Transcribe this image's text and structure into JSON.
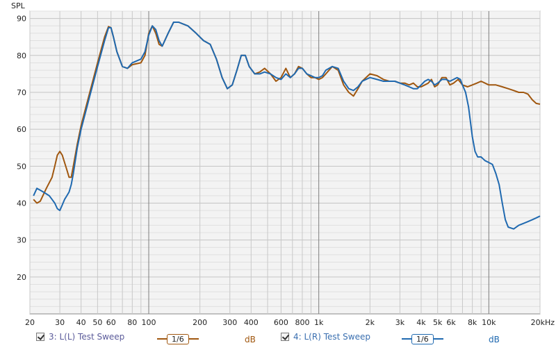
{
  "chart_data": {
    "type": "line",
    "ylabel": "SPL",
    "x_scale": "log",
    "xlim": [
      20,
      20000
    ],
    "ylim": [
      10,
      92
    ],
    "x_ticks": [
      {
        "v": 20,
        "label": "20"
      },
      {
        "v": 30,
        "label": "30"
      },
      {
        "v": 40,
        "label": "40"
      },
      {
        "v": 50,
        "label": "50"
      },
      {
        "v": 60,
        "label": "60"
      },
      {
        "v": 80,
        "label": "80"
      },
      {
        "v": 100,
        "label": "100"
      },
      {
        "v": 200,
        "label": "200"
      },
      {
        "v": 300,
        "label": "300"
      },
      {
        "v": 400,
        "label": "400"
      },
      {
        "v": 600,
        "label": "600"
      },
      {
        "v": 800,
        "label": "800"
      },
      {
        "v": 1000,
        "label": "1k"
      },
      {
        "v": 2000,
        "label": "2k"
      },
      {
        "v": 3000,
        "label": "3k"
      },
      {
        "v": 4000,
        "label": "4k"
      },
      {
        "v": 5000,
        "label": "5k"
      },
      {
        "v": 6000,
        "label": "6k"
      },
      {
        "v": 8000,
        "label": "8k"
      },
      {
        "v": 10000,
        "label": "10k"
      },
      {
        "v": 20000,
        "label": "20kHz"
      }
    ],
    "y_ticks": [
      20,
      30,
      40,
      50,
      60,
      70,
      80,
      90
    ],
    "major_x": [
      100,
      1000,
      10000
    ],
    "series": [
      {
        "name": "3: L(L) Test Sweep",
        "color": "#a0570f",
        "points": [
          [
            21,
            41
          ],
          [
            22,
            40
          ],
          [
            23,
            40.5
          ],
          [
            25,
            44
          ],
          [
            27,
            47
          ],
          [
            28,
            50
          ],
          [
            29,
            53
          ],
          [
            30,
            54
          ],
          [
            31,
            53
          ],
          [
            32,
            51
          ],
          [
            33,
            49
          ],
          [
            34,
            47
          ],
          [
            35,
            47
          ],
          [
            36,
            50
          ],
          [
            38,
            56
          ],
          [
            40,
            61
          ],
          [
            45,
            70
          ],
          [
            50,
            78
          ],
          [
            55,
            85
          ],
          [
            58,
            87.8
          ],
          [
            60,
            87.5
          ],
          [
            62,
            85
          ],
          [
            65,
            81
          ],
          [
            70,
            77
          ],
          [
            75,
            76.5
          ],
          [
            80,
            77.5
          ],
          [
            90,
            78
          ],
          [
            95,
            80
          ],
          [
            100,
            86
          ],
          [
            105,
            88
          ],
          [
            110,
            86
          ],
          [
            115,
            83
          ],
          [
            120,
            82.5
          ],
          [
            130,
            86
          ],
          [
            140,
            89
          ],
          [
            150,
            89
          ],
          [
            170,
            88
          ],
          [
            190,
            86
          ],
          [
            210,
            84
          ],
          [
            230,
            83
          ],
          [
            250,
            79
          ],
          [
            270,
            74
          ],
          [
            290,
            71
          ],
          [
            310,
            72
          ],
          [
            330,
            76
          ],
          [
            350,
            80
          ],
          [
            370,
            80
          ],
          [
            390,
            77
          ],
          [
            420,
            75
          ],
          [
            450,
            75.5
          ],
          [
            480,
            76.5
          ],
          [
            520,
            75
          ],
          [
            560,
            73
          ],
          [
            600,
            74
          ],
          [
            640,
            76.5
          ],
          [
            680,
            74
          ],
          [
            720,
            75
          ],
          [
            760,
            77
          ],
          [
            800,
            76.5
          ],
          [
            850,
            75
          ],
          [
            900,
            74
          ],
          [
            950,
            74
          ],
          [
            1000,
            73.5
          ],
          [
            1050,
            74
          ],
          [
            1100,
            75
          ],
          [
            1200,
            77
          ],
          [
            1300,
            76
          ],
          [
            1400,
            72
          ],
          [
            1500,
            70
          ],
          [
            1600,
            69
          ],
          [
            1700,
            71
          ],
          [
            1800,
            73
          ],
          [
            2000,
            75
          ],
          [
            2200,
            74.5
          ],
          [
            2400,
            73.5
          ],
          [
            2600,
            73
          ],
          [
            2800,
            73
          ],
          [
            3000,
            72.5
          ],
          [
            3200,
            72.5
          ],
          [
            3400,
            72
          ],
          [
            3600,
            72.5
          ],
          [
            3800,
            71.5
          ],
          [
            4000,
            71.5
          ],
          [
            4200,
            72
          ],
          [
            4400,
            72.5
          ],
          [
            4600,
            73.5
          ],
          [
            4800,
            71.5
          ],
          [
            5000,
            72
          ],
          [
            5300,
            74
          ],
          [
            5600,
            74
          ],
          [
            5900,
            72
          ],
          [
            6200,
            72.5
          ],
          [
            6600,
            73.5
          ],
          [
            7000,
            72
          ],
          [
            7500,
            71.5
          ],
          [
            8000,
            72
          ],
          [
            8500,
            72.5
          ],
          [
            9000,
            73
          ],
          [
            9500,
            72.5
          ],
          [
            10000,
            72
          ],
          [
            11000,
            72
          ],
          [
            12000,
            71.5
          ],
          [
            13000,
            71
          ],
          [
            14000,
            70.5
          ],
          [
            15000,
            70
          ],
          [
            16000,
            70
          ],
          [
            17000,
            69.5
          ],
          [
            18000,
            68
          ],
          [
            19000,
            67
          ],
          [
            20000,
            66.8
          ]
        ]
      },
      {
        "name": "4: L(R) Test Sweep",
        "color": "#1f69b0",
        "points": [
          [
            21,
            42
          ],
          [
            22,
            44
          ],
          [
            23,
            43.5
          ],
          [
            24,
            43
          ],
          [
            26,
            42
          ],
          [
            27,
            41
          ],
          [
            28,
            40
          ],
          [
            29,
            38.5
          ],
          [
            30,
            38
          ],
          [
            31,
            39.5
          ],
          [
            32,
            41
          ],
          [
            33,
            42
          ],
          [
            34,
            43
          ],
          [
            35,
            45
          ],
          [
            36,
            48
          ],
          [
            38,
            55
          ],
          [
            40,
            60
          ],
          [
            45,
            69
          ],
          [
            50,
            77
          ],
          [
            55,
            84
          ],
          [
            58,
            87.5
          ],
          [
            60,
            87.5
          ],
          [
            62,
            85
          ],
          [
            65,
            81
          ],
          [
            70,
            77
          ],
          [
            75,
            76.5
          ],
          [
            80,
            78
          ],
          [
            90,
            79
          ],
          [
            95,
            81
          ],
          [
            100,
            85.5
          ],
          [
            105,
            88
          ],
          [
            110,
            87
          ],
          [
            115,
            84
          ],
          [
            120,
            82.5
          ],
          [
            130,
            86
          ],
          [
            140,
            89
          ],
          [
            150,
            89
          ],
          [
            170,
            88
          ],
          [
            190,
            86
          ],
          [
            210,
            84
          ],
          [
            230,
            83
          ],
          [
            250,
            79
          ],
          [
            270,
            74
          ],
          [
            290,
            71
          ],
          [
            310,
            72
          ],
          [
            330,
            76
          ],
          [
            350,
            80
          ],
          [
            370,
            80
          ],
          [
            390,
            77
          ],
          [
            420,
            75
          ],
          [
            450,
            75
          ],
          [
            480,
            75.5
          ],
          [
            520,
            75
          ],
          [
            560,
            74
          ],
          [
            600,
            73.5
          ],
          [
            640,
            75
          ],
          [
            680,
            74
          ],
          [
            720,
            75
          ],
          [
            760,
            76.5
          ],
          [
            800,
            76.5
          ],
          [
            850,
            75
          ],
          [
            900,
            74.5
          ],
          [
            950,
            74
          ],
          [
            1000,
            74
          ],
          [
            1050,
            74.5
          ],
          [
            1100,
            76
          ],
          [
            1200,
            77
          ],
          [
            1300,
            76.5
          ],
          [
            1400,
            73
          ],
          [
            1500,
            71
          ],
          [
            1600,
            70.5
          ],
          [
            1700,
            71.5
          ],
          [
            1800,
            73
          ],
          [
            2000,
            74
          ],
          [
            2200,
            73.5
          ],
          [
            2400,
            73
          ],
          [
            2600,
            73
          ],
          [
            2800,
            73
          ],
          [
            3000,
            72.5
          ],
          [
            3200,
            72
          ],
          [
            3400,
            71.5
          ],
          [
            3600,
            71
          ],
          [
            3800,
            71
          ],
          [
            4000,
            72
          ],
          [
            4200,
            73
          ],
          [
            4400,
            73.5
          ],
          [
            4600,
            73
          ],
          [
            4800,
            72
          ],
          [
            5000,
            72.5
          ],
          [
            5300,
            73.5
          ],
          [
            5600,
            73.5
          ],
          [
            5900,
            73
          ],
          [
            6200,
            73.5
          ],
          [
            6500,
            74
          ],
          [
            6800,
            73.5
          ],
          [
            7000,
            72
          ],
          [
            7300,
            70
          ],
          [
            7600,
            66
          ],
          [
            8000,
            58
          ],
          [
            8300,
            54
          ],
          [
            8600,
            52.5
          ],
          [
            9000,
            52.5
          ],
          [
            9500,
            51.5
          ],
          [
            10000,
            51
          ],
          [
            10500,
            50.5
          ],
          [
            11000,
            48
          ],
          [
            11500,
            45
          ],
          [
            12000,
            40
          ],
          [
            12500,
            35.5
          ],
          [
            13000,
            33.5
          ],
          [
            14000,
            33
          ],
          [
            15000,
            34
          ],
          [
            16000,
            34.5
          ],
          [
            17000,
            35
          ],
          [
            18000,
            35.5
          ],
          [
            19000,
            36
          ],
          [
            20000,
            36.5
          ]
        ]
      }
    ]
  },
  "legend": [
    {
      "label": "3: L(L) Test Sweep",
      "smoothing": "1/6",
      "unit": "dB",
      "color": "#a0570f",
      "checked": true
    },
    {
      "label": "4: L(R) Test Sweep",
      "smoothing": "1/6",
      "unit": "dB",
      "color": "#1f69b0",
      "checked": true
    }
  ]
}
